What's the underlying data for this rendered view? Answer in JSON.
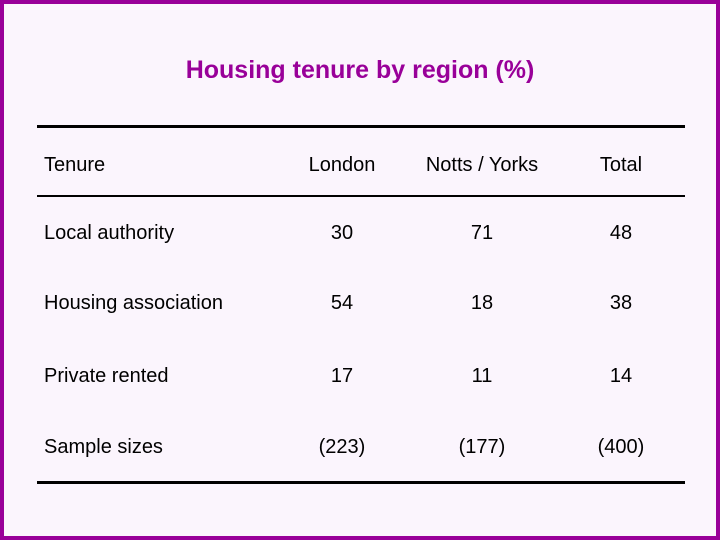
{
  "title": "Housing tenure by region (%)",
  "table": {
    "header": [
      "Tenure",
      "London",
      "Notts / Yorks",
      "Total"
    ],
    "rows": [
      [
        "Local authority",
        "30",
        "71",
        "48"
      ],
      [
        "Housing association",
        "54",
        "18",
        "38"
      ],
      [
        "Private rented",
        "17",
        "11",
        "14"
      ],
      [
        "Sample sizes",
        "(223)",
        "(177)",
        "(400)"
      ]
    ]
  }
}
